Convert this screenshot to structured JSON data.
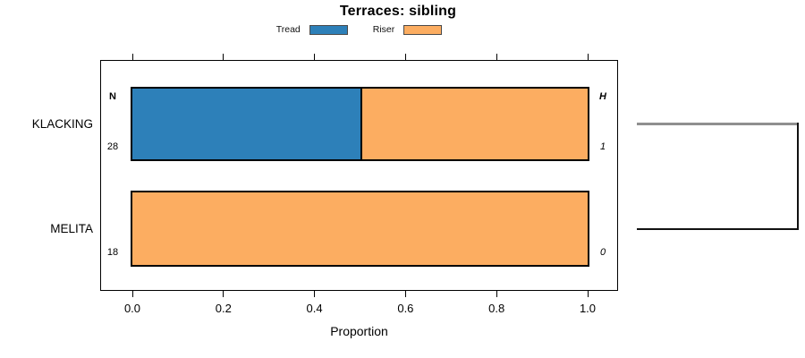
{
  "title": "Terraces: sibling",
  "chart_data": {
    "type": "bar",
    "orientation": "horizontal",
    "stacked": true,
    "title": "Terraces: sibling",
    "xlabel": "Proportion",
    "xlim": [
      0,
      1
    ],
    "xticks": [
      "0.0",
      "0.2",
      "0.4",
      "0.6",
      "0.8",
      "1.0"
    ],
    "grid": false,
    "legend_position": "top",
    "categories": [
      "KLACKING",
      "MELITA"
    ],
    "series": [
      {
        "name": "Tread",
        "color": "#2d80b9",
        "values": [
          0.5,
          0
        ]
      },
      {
        "name": "Riser",
        "color": "#fcad61",
        "values": [
          0.5,
          1
        ]
      }
    ],
    "row_annotations": {
      "left_header": "N",
      "right_header": "H",
      "left_values": [
        "28",
        "18"
      ],
      "right_values": [
        "1",
        "0"
      ]
    },
    "dendrogram": {
      "heights": [
        1,
        0
      ]
    }
  }
}
